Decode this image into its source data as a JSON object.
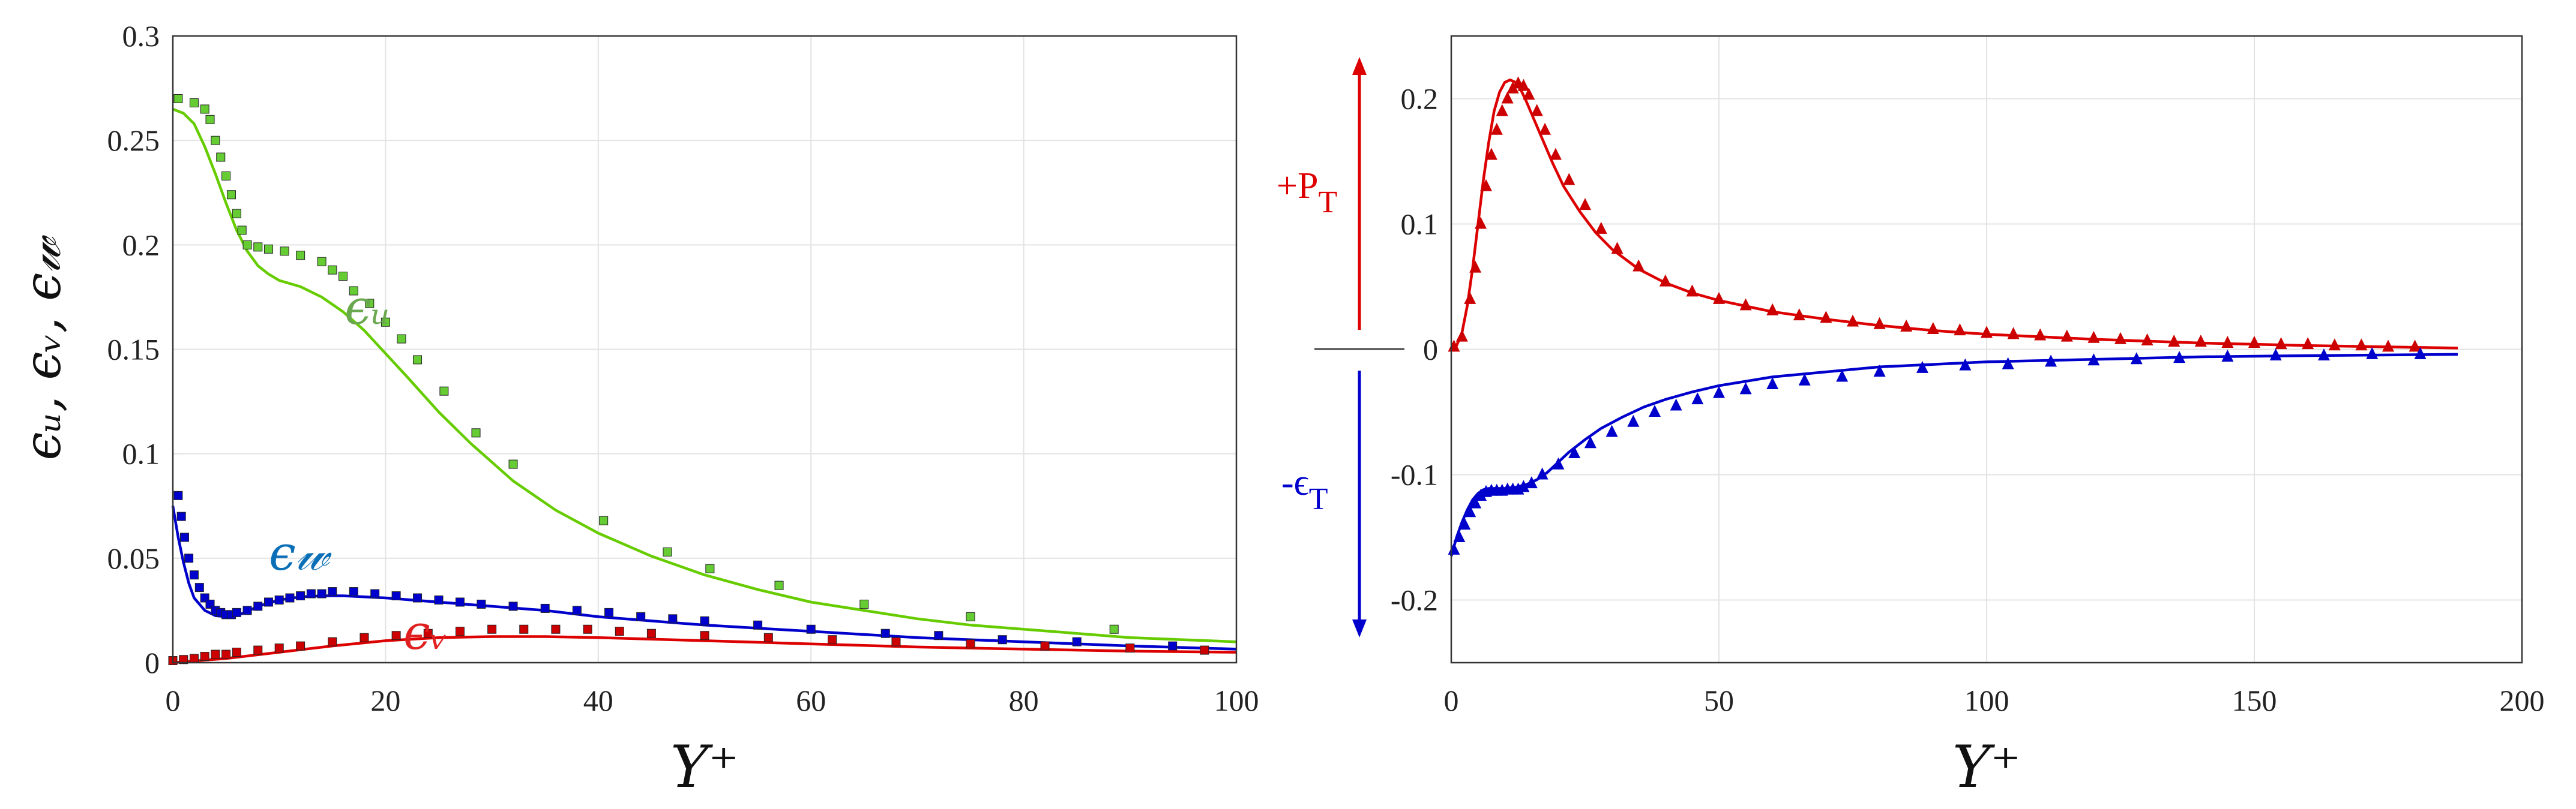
{
  "chart_data": [
    {
      "type": "line",
      "xlabel": "Y⁺",
      "ylabel": "ϵᵤ, ϵᵥ, ϵ𝓌",
      "xlim": [
        0,
        100
      ],
      "ylim": [
        0,
        0.3
      ],
      "xticks": [
        "0",
        "20",
        "40",
        "60",
        "80",
        "100"
      ],
      "yticks": [
        "0",
        "0.05",
        "0.1",
        "0.15",
        "0.2",
        "0.25",
        "0.3"
      ],
      "grid": true,
      "annotations": [
        {
          "text": "ϵᵤ",
          "color": "#6aa84f"
        },
        {
          "text": "ϵ𝓌",
          "color": "#0b6fb8"
        },
        {
          "text": "ϵᵥ",
          "color": "#e02020"
        }
      ],
      "series": [
        {
          "color": "#66cc00",
          "style": "line",
          "x": [
            0,
            1,
            2,
            3,
            4,
            5,
            6,
            7,
            8,
            9,
            10,
            12,
            14,
            16,
            18,
            20,
            22,
            25,
            28,
            32,
            36,
            40,
            45,
            50,
            55,
            60,
            65,
            70,
            75,
            80,
            85,
            90,
            95,
            100
          ],
          "y": [
            0.265,
            0.263,
            0.258,
            0.247,
            0.234,
            0.22,
            0.207,
            0.197,
            0.19,
            0.186,
            0.183,
            0.18,
            0.175,
            0.168,
            0.159,
            0.148,
            0.137,
            0.12,
            0.105,
            0.087,
            0.073,
            0.062,
            0.051,
            0.042,
            0.035,
            0.029,
            0.025,
            0.021,
            0.018,
            0.016,
            0.014,
            0.012,
            0.011,
            0.01
          ]
        },
        {
          "color": "#66cc33",
          "style": "square",
          "x": [
            0.5,
            2,
            3,
            3.5,
            4,
            4.5,
            5,
            5.5,
            6,
            6.5,
            7,
            8,
            9,
            10.5,
            12,
            14,
            15,
            16,
            17,
            18.5,
            20,
            21.5,
            23,
            25.5,
            28.5,
            32,
            40.5,
            46.5,
            50.5,
            57,
            65,
            75,
            88.5
          ],
          "y": [
            0.27,
            0.268,
            0.265,
            0.26,
            0.25,
            0.242,
            0.233,
            0.224,
            0.215,
            0.207,
            0.2,
            0.199,
            0.198,
            0.197,
            0.195,
            0.192,
            0.188,
            0.185,
            0.178,
            0.172,
            0.163,
            0.155,
            0.145,
            0.13,
            0.11,
            0.095,
            0.068,
            0.053,
            0.045,
            0.037,
            0.028,
            0.022,
            0.016
          ]
        },
        {
          "color": "#0000cc",
          "style": "line",
          "x": [
            0,
            0.5,
            1,
            1.5,
            2,
            3,
            4,
            5,
            6,
            7,
            8,
            10,
            12,
            14,
            16,
            18,
            20,
            25,
            30,
            35,
            40,
            50,
            60,
            70,
            80,
            90,
            100
          ],
          "y": [
            0.075,
            0.06,
            0.048,
            0.038,
            0.031,
            0.025,
            0.0225,
            0.022,
            0.0225,
            0.0245,
            0.027,
            0.03,
            0.0315,
            0.032,
            0.032,
            0.0315,
            0.031,
            0.029,
            0.027,
            0.025,
            0.022,
            0.018,
            0.015,
            0.012,
            0.01,
            0.008,
            0.0065
          ]
        },
        {
          "color": "#0000cc",
          "style": "square",
          "x": [
            0.5,
            0.8,
            1.1,
            1.5,
            2,
            2.5,
            3,
            3.5,
            4,
            4.5,
            5,
            5.5,
            6,
            7,
            8,
            9,
            10,
            11,
            12,
            13,
            14,
            15,
            17,
            19,
            21,
            23,
            25,
            27,
            29,
            32,
            35,
            38,
            41,
            44,
            47,
            50,
            55,
            60,
            67,
            72,
            78,
            85,
            94
          ],
          "y": [
            0.08,
            0.07,
            0.06,
            0.05,
            0.042,
            0.036,
            0.031,
            0.028,
            0.025,
            0.024,
            0.023,
            0.023,
            0.024,
            0.025,
            0.027,
            0.029,
            0.03,
            0.031,
            0.032,
            0.033,
            0.033,
            0.034,
            0.034,
            0.033,
            0.032,
            0.031,
            0.03,
            0.029,
            0.028,
            0.027,
            0.026,
            0.025,
            0.024,
            0.022,
            0.021,
            0.02,
            0.018,
            0.016,
            0.014,
            0.013,
            0.011,
            0.01,
            0.008
          ]
        },
        {
          "color": "#dd0000",
          "style": "line",
          "x": [
            0,
            5,
            10,
            15,
            20,
            25,
            30,
            35,
            40,
            50,
            60,
            70,
            80,
            90,
            100
          ],
          "y": [
            0,
            0.002,
            0.005,
            0.008,
            0.0105,
            0.012,
            0.0125,
            0.0125,
            0.012,
            0.0105,
            0.009,
            0.0075,
            0.0065,
            0.0055,
            0.005
          ]
        },
        {
          "color": "#cc0000",
          "style": "square",
          "x": [
            0,
            1,
            2,
            3,
            4,
            5,
            6,
            8,
            10,
            12,
            15,
            18,
            21,
            24,
            27,
            30,
            33,
            36,
            39,
            42,
            45,
            50,
            56,
            62,
            68,
            75,
            82,
            90,
            97
          ],
          "y": [
            0.001,
            0.0015,
            0.002,
            0.003,
            0.004,
            0.004,
            0.005,
            0.006,
            0.007,
            0.008,
            0.01,
            0.012,
            0.013,
            0.014,
            0.015,
            0.016,
            0.016,
            0.016,
            0.016,
            0.015,
            0.014,
            0.013,
            0.012,
            0.011,
            0.01,
            0.009,
            0.008,
            0.007,
            0.006
          ]
        }
      ]
    },
    {
      "type": "line",
      "xlabel": "Y⁺",
      "xlim": [
        0,
        200
      ],
      "ylim": [
        -0.25,
        0.25
      ],
      "xticks": [
        "0",
        "50",
        "100",
        "150",
        "200"
      ],
      "yticks": [
        "-0.2",
        "-0.1",
        "0",
        "0.1",
        "0.2"
      ],
      "grid": true,
      "annotations": [
        {
          "text": "+P",
          "sub": "T",
          "color": "#dd0000"
        },
        {
          "text": "-ϵ",
          "sub": "T",
          "color": "#0000cc"
        }
      ],
      "series": [
        {
          "color": "#dd0000",
          "style": "line",
          "x": [
            0,
            1,
            2,
            3,
            4,
            5,
            6,
            7,
            8,
            9,
            10,
            11,
            12,
            13,
            14,
            15,
            17,
            19,
            21,
            24,
            27,
            30,
            35,
            40,
            45,
            50,
            60,
            70,
            80,
            90,
            100,
            120,
            140,
            160,
            188
          ],
          "y": [
            0,
            0.003,
            0.013,
            0.035,
            0.065,
            0.1,
            0.135,
            0.165,
            0.19,
            0.205,
            0.213,
            0.215,
            0.213,
            0.207,
            0.198,
            0.188,
            0.168,
            0.148,
            0.13,
            0.11,
            0.093,
            0.08,
            0.064,
            0.053,
            0.045,
            0.039,
            0.03,
            0.024,
            0.019,
            0.015,
            0.012,
            0.008,
            0.005,
            0.003,
            0.001
          ]
        },
        {
          "color": "#cc0000",
          "style": "triangle",
          "x": [
            0.5,
            2,
            3.5,
            4.5,
            5.5,
            6.5,
            7.5,
            8.5,
            9.5,
            10.5,
            11.5,
            12.5,
            13.5,
            14.5,
            16,
            17.5,
            19.5,
            22,
            25,
            28,
            31,
            35,
            40,
            45,
            50,
            55,
            60,
            65,
            70,
            75,
            80,
            85,
            90,
            95,
            100,
            105,
            110,
            115,
            120,
            125,
            130,
            135,
            140,
            145,
            150,
            155,
            160,
            165,
            170,
            175,
            180
          ],
          "y": [
            0.002,
            0.01,
            0.04,
            0.065,
            0.1,
            0.13,
            0.155,
            0.175,
            0.19,
            0.2,
            0.208,
            0.212,
            0.21,
            0.203,
            0.19,
            0.175,
            0.155,
            0.135,
            0.115,
            0.096,
            0.08,
            0.066,
            0.054,
            0.046,
            0.04,
            0.035,
            0.031,
            0.027,
            0.025,
            0.022,
            0.02,
            0.018,
            0.016,
            0.015,
            0.013,
            0.012,
            0.011,
            0.01,
            0.009,
            0.008,
            0.007,
            0.006,
            0.006,
            0.005,
            0.005,
            0.004,
            0.004,
            0.003,
            0.003,
            0.002,
            0.002
          ]
        },
        {
          "color": "#0000cc",
          "style": "line",
          "x": [
            0,
            1,
            2,
            3,
            4,
            5,
            6,
            7,
            8,
            10,
            12,
            14,
            16,
            18,
            20,
            22,
            25,
            28,
            32,
            36,
            40,
            45,
            50,
            60,
            70,
            80,
            90,
            100,
            120,
            140,
            160,
            188
          ],
          "y": [
            -0.165,
            -0.15,
            -0.138,
            -0.128,
            -0.12,
            -0.115,
            -0.112,
            -0.111,
            -0.111,
            -0.111,
            -0.11,
            -0.108,
            -0.104,
            -0.098,
            -0.09,
            -0.082,
            -0.072,
            -0.063,
            -0.054,
            -0.046,
            -0.04,
            -0.034,
            -0.029,
            -0.022,
            -0.018,
            -0.014,
            -0.012,
            -0.01,
            -0.008,
            -0.006,
            -0.005,
            -0.004
          ]
        },
        {
          "color": "#0000cc",
          "style": "triangle",
          "x": [
            0.5,
            1.5,
            2.5,
            3.5,
            4.5,
            5.5,
            6.5,
            7.5,
            8.5,
            9.5,
            10.5,
            11.5,
            12.5,
            13.5,
            15,
            17,
            20,
            23,
            26,
            30,
            34,
            38,
            42,
            46,
            50,
            55,
            60,
            66,
            73,
            80,
            88,
            96,
            104,
            112,
            120,
            128,
            136,
            145,
            154,
            163,
            172,
            181
          ],
          "y": [
            -0.16,
            -0.15,
            -0.14,
            -0.13,
            -0.123,
            -0.117,
            -0.114,
            -0.113,
            -0.113,
            -0.113,
            -0.112,
            -0.112,
            -0.112,
            -0.11,
            -0.107,
            -0.1,
            -0.092,
            -0.083,
            -0.075,
            -0.066,
            -0.058,
            -0.05,
            -0.045,
            -0.04,
            -0.035,
            -0.032,
            -0.028,
            -0.025,
            -0.022,
            -0.018,
            -0.015,
            -0.013,
            -0.012,
            -0.01,
            -0.009,
            -0.008,
            -0.007,
            -0.006,
            -0.005,
            -0.005,
            -0.004,
            -0.004
          ]
        }
      ]
    }
  ]
}
